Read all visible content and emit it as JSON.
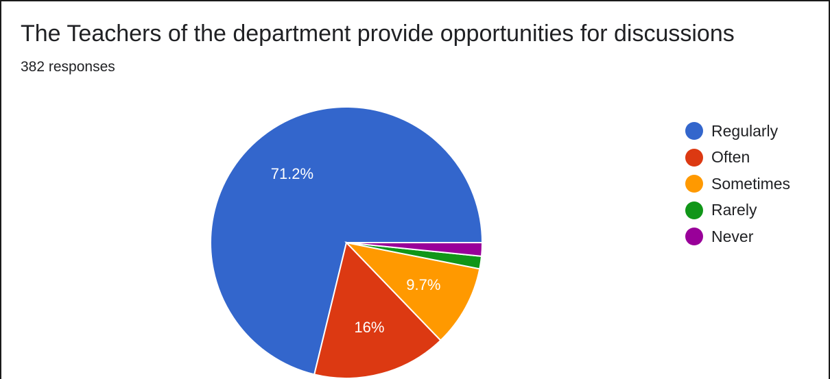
{
  "chart_data": {
    "type": "pie",
    "title": "The Teachers of the department provide opportunities for discussions",
    "subtitle": "382 responses",
    "legend_position": "right",
    "slices": [
      {
        "label": "Regularly",
        "value": 71.2,
        "display": "71.2%",
        "color": "#3366cc"
      },
      {
        "label": "Often",
        "value": 16.0,
        "display": "16%",
        "color": "#dc3912"
      },
      {
        "label": "Sometimes",
        "value": 9.7,
        "display": "9.7%",
        "color": "#ff9900"
      },
      {
        "label": "Rarely",
        "value": 1.5,
        "display": "",
        "color": "#109618"
      },
      {
        "label": "Never",
        "value": 1.6,
        "display": "",
        "color": "#990099"
      }
    ]
  }
}
